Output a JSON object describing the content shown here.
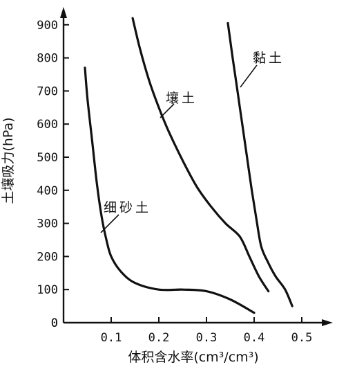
{
  "chart_data": {
    "type": "line",
    "xlabel": "体积含水率(cm³/cm³)",
    "ylabel": "土壤吸力(hPa)",
    "xlim": [
      0,
      0.5
    ],
    "ylim": [
      0,
      900
    ],
    "x_ticks": [
      "0",
      "0.1",
      "0.2",
      "0.3",
      "0.4",
      "0.5"
    ],
    "y_ticks": [
      "0",
      "100",
      "200",
      "300",
      "400",
      "500",
      "600",
      "700",
      "800",
      "900"
    ],
    "grid": false,
    "series": [
      {
        "name": "细砂土",
        "points": [
          [
            0.045,
            770
          ],
          [
            0.05,
            680
          ],
          [
            0.06,
            550
          ],
          [
            0.07,
            420
          ],
          [
            0.08,
            320
          ],
          [
            0.09,
            250
          ],
          [
            0.1,
            200
          ],
          [
            0.12,
            155
          ],
          [
            0.15,
            120
          ],
          [
            0.2,
            100
          ],
          [
            0.25,
            100
          ],
          [
            0.3,
            95
          ],
          [
            0.35,
            70
          ],
          [
            0.4,
            30
          ]
        ]
      },
      {
        "name": "壤土",
        "points": [
          [
            0.145,
            920
          ],
          [
            0.16,
            830
          ],
          [
            0.18,
            730
          ],
          [
            0.2,
            650
          ],
          [
            0.22,
            580
          ],
          [
            0.25,
            490
          ],
          [
            0.28,
            410
          ],
          [
            0.31,
            350
          ],
          [
            0.34,
            300
          ],
          [
            0.37,
            260
          ],
          [
            0.39,
            200
          ],
          [
            0.41,
            140
          ],
          [
            0.43,
            95
          ]
        ]
      },
      {
        "name": "黏土",
        "points": [
          [
            0.345,
            905
          ],
          [
            0.355,
            800
          ],
          [
            0.365,
            700
          ],
          [
            0.375,
            600
          ],
          [
            0.385,
            500
          ],
          [
            0.395,
            400
          ],
          [
            0.405,
            310
          ],
          [
            0.415,
            230
          ],
          [
            0.43,
            180
          ],
          [
            0.445,
            140
          ],
          [
            0.465,
            100
          ],
          [
            0.48,
            50
          ]
        ]
      }
    ],
    "annotations": [
      {
        "text": "细砂土",
        "series": "细砂土"
      },
      {
        "text": "壤土",
        "series": "壤土"
      },
      {
        "text": "黏土",
        "series": "黏土"
      }
    ]
  }
}
